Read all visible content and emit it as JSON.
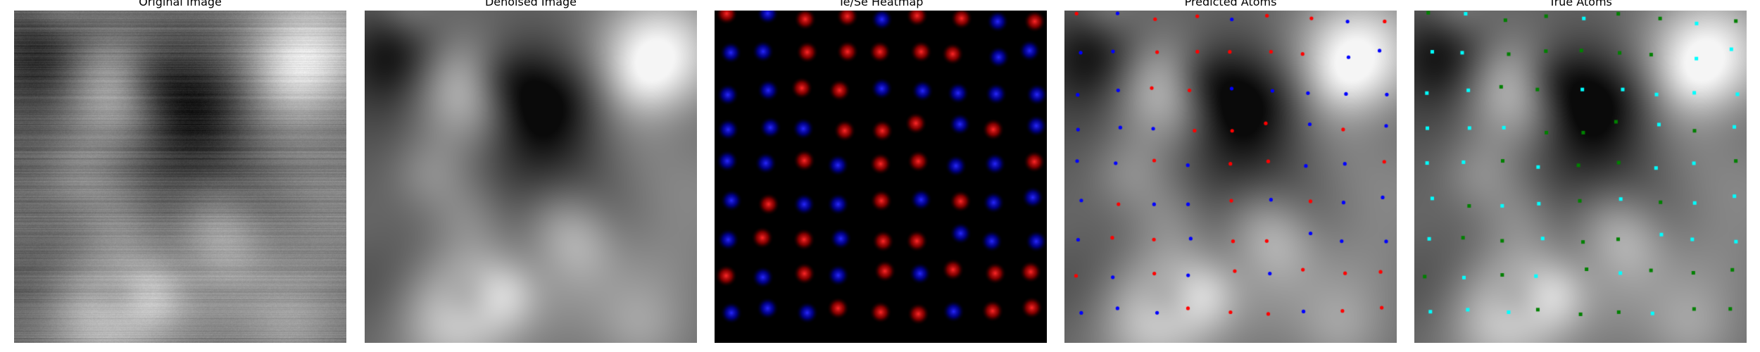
{
  "panels": [
    {
      "id": "original",
      "title": "Original Image"
    },
    {
      "id": "denoised",
      "title": "Denoised Image"
    },
    {
      "id": "heatmap",
      "title": "Te/Se Heatmap"
    },
    {
      "id": "predicted",
      "title": "Predicted Atoms"
    },
    {
      "id": "true",
      "title": "True Atoms"
    }
  ],
  "colors": {
    "background": "#ffffff",
    "heatmap_te": "#ff0000",
    "heatmap_se": "#0000ff",
    "predicted_te": "#ff0000",
    "predicted_se": "#0000ff",
    "true_a": "#00ffff",
    "true_b": "#008000"
  }
}
